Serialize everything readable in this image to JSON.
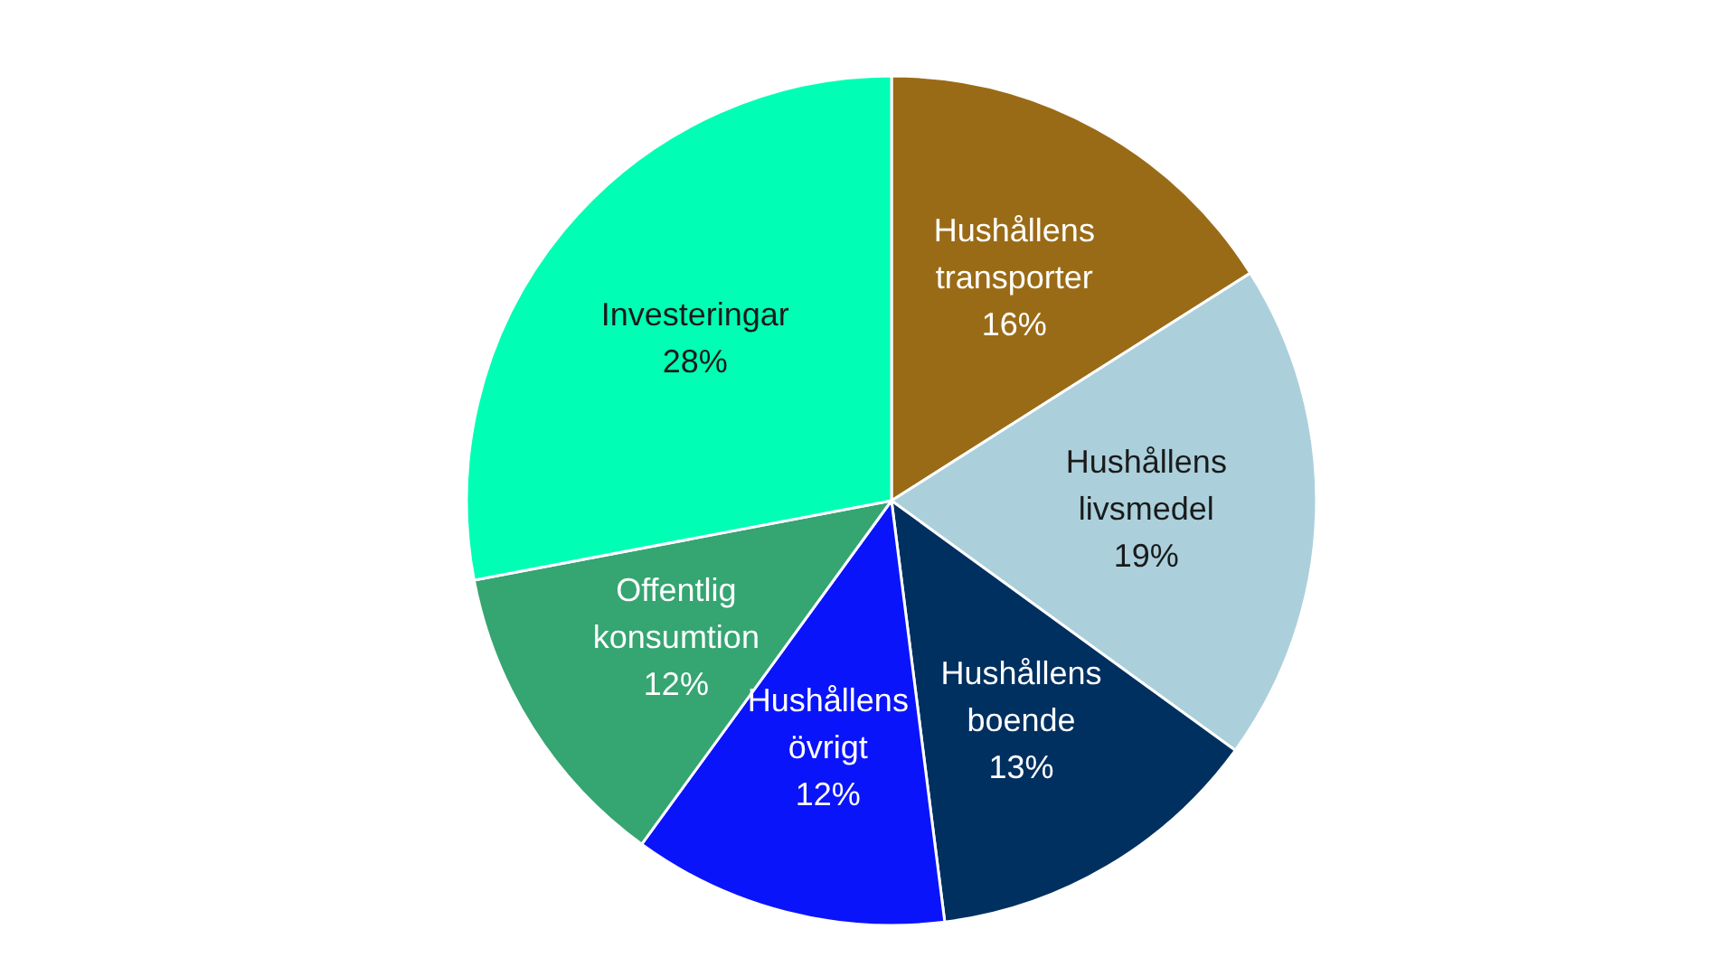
{
  "chart_data": {
    "type": "pie",
    "categories": [
      "Hushållens transporter",
      "Hushållens livsmedel",
      "Hushållens boende",
      "Hushållens övrigt",
      "Offentlig konsumtion",
      "Investeringar"
    ],
    "values": [
      16,
      19,
      13,
      12,
      12,
      28
    ],
    "value_labels": [
      "16%",
      "19%",
      "13%",
      "12%",
      "12%",
      "28%"
    ],
    "colors": [
      "#9a6b16",
      "#abd0dc",
      "#003060",
      "#0a14fa",
      "#35a572",
      "#00ffb4"
    ],
    "legend": false
  }
}
